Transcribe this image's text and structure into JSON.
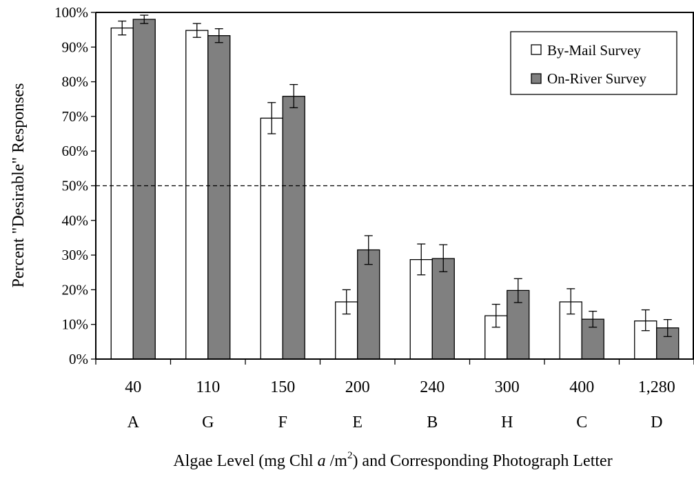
{
  "chart_data": {
    "type": "bar",
    "title": "",
    "xlabel_parts": {
      "before": "Algae Level (mg Chl ",
      "italic": "a",
      "mid": " /m",
      "sup": "2",
      "after": ") and Corresponding Photograph Letter"
    },
    "ylabel": "Percent \"Desirable\" Responses",
    "categories": [
      "40",
      "110",
      "150",
      "200",
      "240",
      "300",
      "400",
      "1,280"
    ],
    "photo_letters": [
      "A",
      "G",
      "F",
      "E",
      "B",
      "H",
      "C",
      "D"
    ],
    "ylim": [
      0,
      100
    ],
    "yticks": [
      0,
      10,
      20,
      30,
      40,
      50,
      60,
      70,
      80,
      90,
      100
    ],
    "ytick_labels": [
      "0%",
      "10%",
      "20%",
      "30%",
      "40%",
      "50%",
      "60%",
      "70%",
      "80%",
      "90%",
      "100%"
    ],
    "reference_line": 50,
    "grid": false,
    "legend_position": "top-right",
    "series": [
      {
        "name": "By-Mail Survey",
        "color": "#ffffff",
        "values": [
          95.5,
          94.8,
          69.5,
          16.5,
          28.7,
          12.5,
          16.5,
          11.0
        ],
        "error_low": [
          93.5,
          92.8,
          65.0,
          13.0,
          24.3,
          9.2,
          13.0,
          8.2
        ],
        "error_high": [
          97.5,
          96.8,
          74.0,
          20.0,
          33.2,
          15.8,
          20.3,
          14.2
        ]
      },
      {
        "name": "On-River Survey",
        "color": "#808080",
        "values": [
          98.0,
          93.3,
          75.8,
          31.5,
          29.0,
          19.8,
          11.5,
          9.0
        ],
        "error_low": [
          96.8,
          91.3,
          72.5,
          27.3,
          25.2,
          16.3,
          9.2,
          6.5
        ],
        "error_high": [
          99.2,
          95.3,
          79.2,
          35.6,
          33.0,
          23.2,
          13.8,
          11.4
        ]
      }
    ]
  }
}
